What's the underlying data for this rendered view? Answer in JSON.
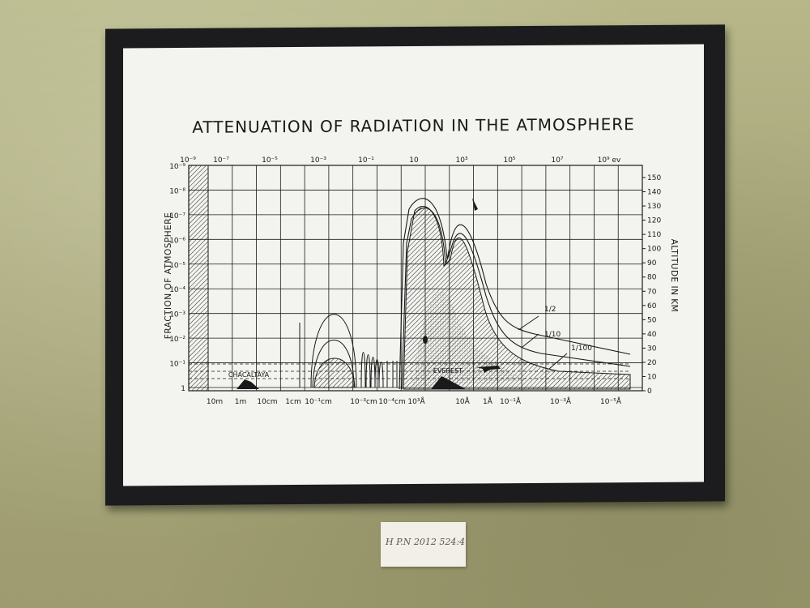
{
  "chart_data": {
    "type": "line",
    "title": "ATTENUATION OF RADIATION IN THE ATMOSPHERE",
    "top_axis_ticks": [
      "10⁻⁹",
      "10⁻⁷",
      "10⁻⁵",
      "10⁻³",
      "10⁻¹",
      "10",
      "10³",
      "10⁵",
      "10⁷",
      "10⁹ ev"
    ],
    "bottom_axis_ticks": [
      "10m",
      "1m",
      "10cm",
      "1cm",
      "10⁻¹cm",
      "10⁻³cm",
      "10⁻⁴cm",
      "10³Å",
      "10Å",
      "1Å",
      "10⁻¹Å",
      "10⁻³Å",
      "10⁻⁵Å"
    ],
    "left_axis_label": "FRACTION OF ATMOSPHERE",
    "left_axis_ticks": [
      "10⁻⁹",
      "10⁻⁸",
      "10⁻⁷",
      "10⁻⁶",
      "10⁻⁵",
      "10⁻⁴",
      "10⁻³",
      "10⁻²",
      "10⁻¹",
      "1"
    ],
    "right_axis_label": "ALTITUDE IN KM",
    "right_axis_ticks": [
      "150",
      "140",
      "130",
      "120",
      "110",
      "100",
      "90",
      "80",
      "70",
      "60",
      "50",
      "40",
      "30",
      "20",
      "10",
      "0"
    ],
    "series": [
      {
        "name": "1/2"
      },
      {
        "name": "1/10"
      },
      {
        "name": "1/100"
      }
    ],
    "annotations": [
      "CHACALTAYA",
      "EVEREST"
    ],
    "grid": true
  },
  "museum_label": "H P.N 2012 524:4",
  "colors": {
    "frame": "#1c1c1e",
    "paper": "#f3f3ef",
    "ink": "#1a1a1a",
    "wall": "#a9a97a"
  }
}
